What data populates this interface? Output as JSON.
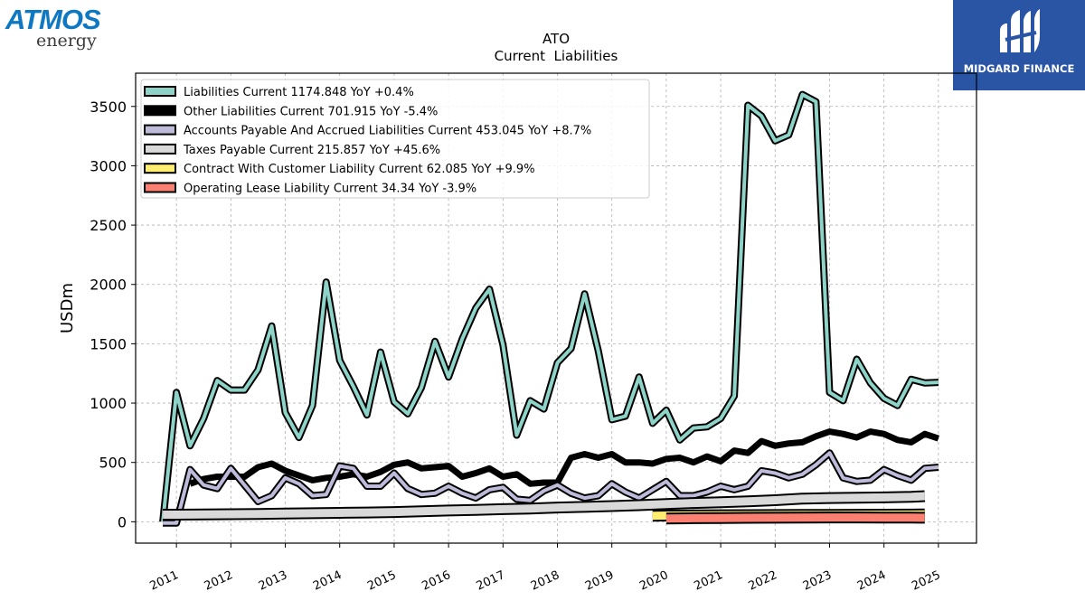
{
  "logos": {
    "left_name": "ATMOS",
    "left_sub": "energy",
    "right_name": "MIDGARD FINANCE"
  },
  "chart_data": {
    "type": "line",
    "title": "ATO",
    "subtitle": "Current  Liabilities",
    "ylabel": "USDm",
    "xlabel": "",
    "ylim": [
      -180,
      3780
    ],
    "xlim": [
      2010.25,
      2025.7
    ],
    "grid": true,
    "legend_position": "top-left",
    "yticks": [
      0,
      500,
      1000,
      1500,
      2000,
      2500,
      3000,
      3500
    ],
    "xticks": [
      "2011",
      "2012",
      "2013",
      "2014",
      "2015",
      "2016",
      "2017",
      "2018",
      "2019",
      "2020",
      "2021",
      "2022",
      "2023",
      "2024",
      "2025"
    ],
    "series": [
      {
        "name": "Liabilities Current  1174.848 YoY +0.4%",
        "color": "#8dd3c7",
        "width": 4,
        "x": [
          2010.75,
          2011.0,
          2011.25,
          2011.5,
          2011.75,
          2012.0,
          2012.25,
          2012.5,
          2012.75,
          2013.0,
          2013.25,
          2013.5,
          2013.75,
          2014.0,
          2014.25,
          2014.5,
          2014.75,
          2015.0,
          2015.25,
          2015.5,
          2015.75,
          2016.0,
          2016.25,
          2016.5,
          2016.75,
          2017.0,
          2017.25,
          2017.5,
          2017.75,
          2018.0,
          2018.25,
          2018.5,
          2018.75,
          2019.0,
          2019.25,
          2019.5,
          2019.75,
          2020.0,
          2020.25,
          2020.5,
          2020.75,
          2021.0,
          2021.25,
          2021.5,
          2021.75,
          2022.0,
          2022.25,
          2022.5,
          2022.75,
          2023.0,
          2023.25,
          2023.5,
          2023.75,
          2024.0,
          2024.25,
          2024.5,
          2024.75,
          2025.0
        ],
        "values": [
          0,
          1090,
          640,
          870,
          1190,
          1110,
          1110,
          1280,
          1650,
          920,
          710,
          980,
          2020,
          1360,
          1140,
          900,
          1430,
          1010,
          910,
          1130,
          1520,
          1220,
          1540,
          1800,
          1960,
          1490,
          730,
          1020,
          950,
          1340,
          1460,
          1920,
          1440,
          860,
          890,
          1220,
          830,
          940,
          690,
          790,
          800,
          870,
          1060,
          3510,
          3420,
          3210,
          3260,
          3600,
          3540,
          1090,
          1020,
          1370,
          1170,
          1040,
          980,
          1200,
          1170,
          1175
        ]
      },
      {
        "name": "Other Liabilities Current  701.915 YoY -5.4%",
        "color": "#000000",
        "width": 7,
        "x": [
          2011.25,
          2011.5,
          2011.75,
          2012.0,
          2012.25,
          2012.5,
          2012.75,
          2013.0,
          2013.25,
          2013.5,
          2013.75,
          2014.0,
          2014.25,
          2014.5,
          2014.75,
          2015.0,
          2015.25,
          2015.5,
          2015.75,
          2016.0,
          2016.25,
          2016.5,
          2016.75,
          2017.0,
          2017.25,
          2017.5,
          2017.75,
          2018.0,
          2018.25,
          2018.5,
          2018.75,
          2019.0,
          2019.25,
          2019.5,
          2019.75,
          2020.0,
          2020.25,
          2020.5,
          2020.75,
          2021.0,
          2021.25,
          2021.5,
          2021.75,
          2022.0,
          2022.25,
          2022.5,
          2022.75,
          2023.0,
          2023.25,
          2023.5,
          2023.75,
          2024.0,
          2024.25,
          2024.5,
          2024.75,
          2025.0
        ],
        "values": [
          320,
          360,
          380,
          380,
          380,
          460,
          490,
          430,
          390,
          350,
          370,
          380,
          400,
          380,
          420,
          480,
          500,
          450,
          460,
          470,
          380,
          410,
          450,
          380,
          400,
          320,
          330,
          330,
          540,
          570,
          540,
          570,
          500,
          500,
          490,
          530,
          540,
          500,
          550,
          510,
          600,
          580,
          680,
          640,
          660,
          670,
          720,
          760,
          740,
          710,
          760,
          740,
          690,
          670,
          740,
          702
        ]
      },
      {
        "name": "Accounts Payable And Accrued Liabilities Current  453.045 YoY +8.7%",
        "color": "#bebada",
        "width": 4,
        "x": [
          2010.75,
          2011.0,
          2011.25,
          2011.5,
          2011.75,
          2012.0,
          2012.25,
          2012.5,
          2012.75,
          2013.0,
          2013.25,
          2013.5,
          2013.75,
          2014.0,
          2014.25,
          2014.5,
          2014.75,
          2015.0,
          2015.25,
          2015.5,
          2015.75,
          2016.0,
          2016.25,
          2016.5,
          2016.75,
          2017.0,
          2017.25,
          2017.5,
          2017.75,
          2018.0,
          2018.25,
          2018.5,
          2018.75,
          2019.0,
          2019.25,
          2019.5,
          2019.75,
          2020.0,
          2020.25,
          2020.5,
          2020.75,
          2021.0,
          2021.25,
          2021.5,
          2021.75,
          2022.0,
          2022.25,
          2022.5,
          2022.75,
          2023.0,
          2023.25,
          2023.5,
          2023.75,
          2024.0,
          2024.25,
          2024.5,
          2024.75,
          2025.0
        ],
        "values": [
          -10,
          -10,
          440,
          310,
          280,
          450,
          310,
          170,
          220,
          370,
          320,
          220,
          230,
          470,
          450,
          300,
          300,
          410,
          280,
          230,
          240,
          300,
          240,
          200,
          270,
          290,
          190,
          180,
          260,
          310,
          240,
          200,
          220,
          320,
          250,
          200,
          270,
          340,
          220,
          220,
          250,
          300,
          270,
          300,
          430,
          410,
          370,
          400,
          480,
          580,
          370,
          340,
          350,
          440,
          390,
          350,
          450,
          460
        ]
      },
      {
        "name": "Taxes Payable Current  215.857 YoY +45.6%",
        "color": "#d9d9d9",
        "width": 9,
        "x": [
          2010.75,
          2011.0,
          2011.5,
          2012.0,
          2012.5,
          2013.0,
          2013.5,
          2014.0,
          2014.5,
          2015.0,
          2015.5,
          2016.0,
          2016.5,
          2017.0,
          2017.5,
          2018.0,
          2018.5,
          2019.0,
          2019.5,
          2020.0,
          2020.5,
          2021.0,
          2021.5,
          2022.0,
          2022.5,
          2023.0,
          2023.5,
          2024.0,
          2024.5,
          2024.75
        ],
        "values": [
          60,
          60,
          62,
          64,
          66,
          70,
          72,
          75,
          78,
          82,
          88,
          95,
          100,
          106,
          112,
          120,
          125,
          132,
          140,
          150,
          158,
          165,
          172,
          182,
          195,
          200,
          202,
          205,
          210,
          216
        ]
      },
      {
        "name": "Contract With Customer Liability Current  62.085 YoY +9.9%",
        "color": "#ffed6f",
        "width": 9,
        "x": [
          2019.75,
          2020.0,
          2020.5,
          2021.0,
          2021.5,
          2022.0,
          2022.5,
          2023.0,
          2023.5,
          2024.0,
          2024.5,
          2024.75
        ],
        "values": [
          50,
          52,
          54,
          55,
          56,
          57,
          58,
          58,
          59,
          60,
          61,
          62
        ]
      },
      {
        "name": "Operating Lease Liability Current  34.34 YoY -3.9%",
        "color": "#fb8072",
        "width": 9,
        "x": [
          2020.0,
          2020.5,
          2021.0,
          2021.5,
          2022.0,
          2022.5,
          2023.0,
          2023.5,
          2024.0,
          2024.5,
          2024.75
        ],
        "values": [
          28,
          30,
          32,
          33,
          34,
          35,
          36,
          36,
          35,
          35,
          34
        ]
      }
    ]
  }
}
